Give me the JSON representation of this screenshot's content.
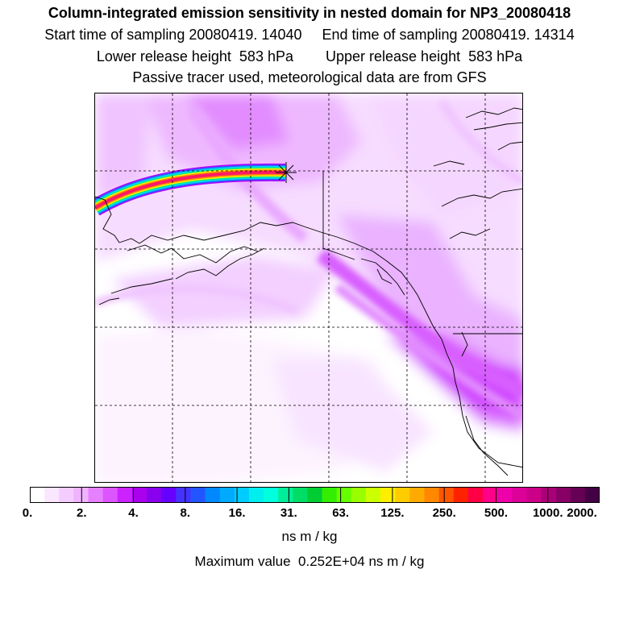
{
  "header": {
    "title": "Column-integrated emission sensitivity in nested domain for NP3_20080418",
    "sampling_times": "Start time of sampling 20080419. 14040     End time of sampling 20080419. 14314",
    "release_heights": "Lower release height  583 hPa        Upper release height  583 hPa",
    "tracer_note": "Passive tracer used, meteorological data are from GFS"
  },
  "colorbar": {
    "tick_labels": [
      "0.",
      "2.",
      "4.",
      "8.",
      "16.",
      "31.",
      "63.",
      "125.",
      "250.",
      "500.",
      "1000.",
      "2000."
    ],
    "colors": [
      "#ffffff",
      "#fbe6ff",
      "#f5ccff",
      "#f0b3ff",
      "#e680ff",
      "#dd55ff",
      "#cc22ff",
      "#aa00ee",
      "#8800ee",
      "#6600ff",
      "#4433ff",
      "#2255ff",
      "#0088ff",
      "#00aaff",
      "#00ccff",
      "#00eeee",
      "#00ffdd",
      "#00ee99",
      "#00dd66",
      "#00cc33",
      "#33ee00",
      "#66ff00",
      "#99ff00",
      "#ccff00",
      "#ffee00",
      "#ffcc00",
      "#ffaa00",
      "#ff8800",
      "#ff5500",
      "#ff2200",
      "#ff0044",
      "#ff0088",
      "#ee00aa",
      "#dd0099",
      "#cc0088",
      "#aa0077",
      "#880066",
      "#660055",
      "#440044"
    ],
    "units": "ns m / kg",
    "max_value_text": "Maximum value  0.252E+04 ns m / kg"
  },
  "map": {
    "icons": [
      "release-point-star-icon"
    ],
    "colors": {
      "plume_light": "#f2c6ff",
      "plume_mid": "#e48dff",
      "plume_dark": "#cc33ff",
      "coast": "#000000"
    }
  }
}
